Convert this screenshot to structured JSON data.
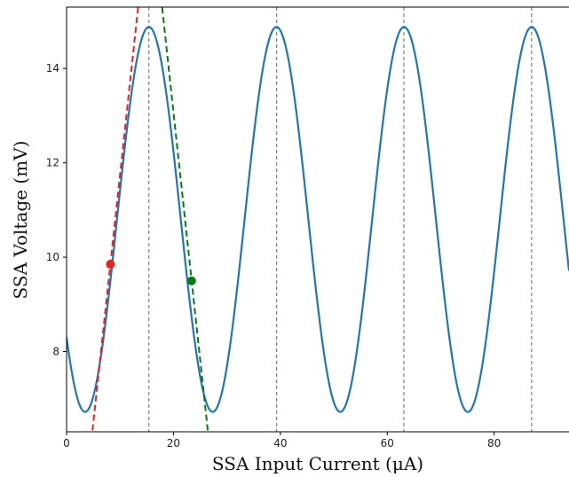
{
  "chart_data": {
    "type": "line",
    "xlabel": "SSA Input Current (μA)",
    "ylabel": "SSA Voltage (mV)",
    "xlim": [
      0,
      94
    ],
    "ylim": [
      6.3,
      15.3
    ],
    "x_ticks": [
      0,
      20,
      40,
      60,
      80
    ],
    "x_tick_labels": [
      "0",
      "20",
      "40",
      "60",
      "80"
    ],
    "y_ticks": [
      8,
      10,
      12,
      14
    ],
    "y_tick_labels": [
      "8",
      "10",
      "12",
      "14"
    ],
    "grid": false,
    "series": [
      {
        "color": "#1f77b4",
        "curve": {
          "form": "sinusoid",
          "offset_mV": 10.8,
          "amplitude_mV": 4.08,
          "period_uA": 23.87,
          "peak_at_uA": 15.4,
          "x_range": [
            0,
            94
          ]
        }
      }
    ],
    "vertical_lines": [
      {
        "x": 15.4,
        "color": "#808080",
        "style": "dashed"
      },
      {
        "x": 39.3,
        "color": "#808080",
        "style": "dashed"
      },
      {
        "x": 63.1,
        "color": "#808080",
        "style": "dashed"
      },
      {
        "x": 87.0,
        "color": "#808080",
        "style": "dashed"
      }
    ],
    "tangent_lines": [
      {
        "color": "#e8231e",
        "style": "dashed",
        "through": [
          8.2,
          9.85
        ],
        "slope_mV_per_uA": 1.05
      },
      {
        "color": "#0c7a14",
        "style": "dashed",
        "through": [
          23.4,
          9.5
        ],
        "slope_mV_per_uA": -1.05
      }
    ],
    "points": [
      {
        "x": 8.2,
        "y": 9.85,
        "color": "#e8231e"
      },
      {
        "x": 23.4,
        "y": 9.5,
        "color": "#0c7a14"
      }
    ]
  }
}
